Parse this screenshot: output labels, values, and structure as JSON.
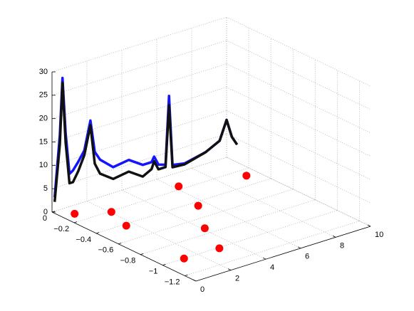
{
  "chart_data": {
    "type": "line3d",
    "xlim": [
      0,
      10
    ],
    "ylim": [
      -1.3,
      0
    ],
    "zlim": [
      0,
      30
    ],
    "xticks": [
      0,
      2,
      4,
      6,
      8,
      10
    ],
    "yticks": [
      {
        "value": -1.2,
        "label": "−1.2"
      },
      {
        "value": -1,
        "label": "−1"
      },
      {
        "value": -0.8,
        "label": "−0.8"
      },
      {
        "value": -0.6,
        "label": "−0.6"
      },
      {
        "value": -0.4,
        "label": "−0.4"
      },
      {
        "value": -0.2,
        "label": "−0.2"
      },
      0
    ],
    "zticks": [
      0,
      5,
      10,
      15,
      20,
      25,
      30
    ],
    "grid": true,
    "x": [
      0.15,
      0.45,
      0.6,
      0.78,
      1.0,
      1.2,
      1.5,
      1.85,
      2.2,
      2.45,
      2.75,
      3.5,
      4.4,
      5.2,
      5.7,
      5.85,
      6.1,
      6.5,
      6.7,
      6.9,
      7.6,
      8.8,
      9.6,
      10.0,
      10.3,
      10.6
    ],
    "series": [
      {
        "color": "#1414ff",
        "values": [
          3,
          16,
          28,
          16,
          7,
          7.5,
          9,
          11,
          17,
          10,
          8,
          5.5,
          6,
          4,
          4,
          5,
          3,
          2.5,
          17,
          2,
          1.5,
          2.5,
          4,
          8,
          4,
          2
        ]
      },
      {
        "color": "#111111",
        "values": [
          2,
          14,
          27,
          14,
          5,
          5,
          7,
          10,
          16,
          7.5,
          5,
          3,
          3.5,
          1.5,
          2.5,
          4,
          2,
          2,
          15,
          1.5,
          1.3,
          2.5,
          4,
          8,
          4,
          2
        ]
      }
    ],
    "points": {
      "color": "#ff0000",
      "x": [
        0.66,
        2.07,
        1.59,
        1.22,
        6.24,
        5.52,
        4.12,
        3.18,
        9.36
      ],
      "y": [
        -0.1,
        -0.21,
        -0.42,
        -1.0,
        -0.16,
        -0.45,
        -0.73,
        -1.01,
        -0.28
      ]
    }
  }
}
